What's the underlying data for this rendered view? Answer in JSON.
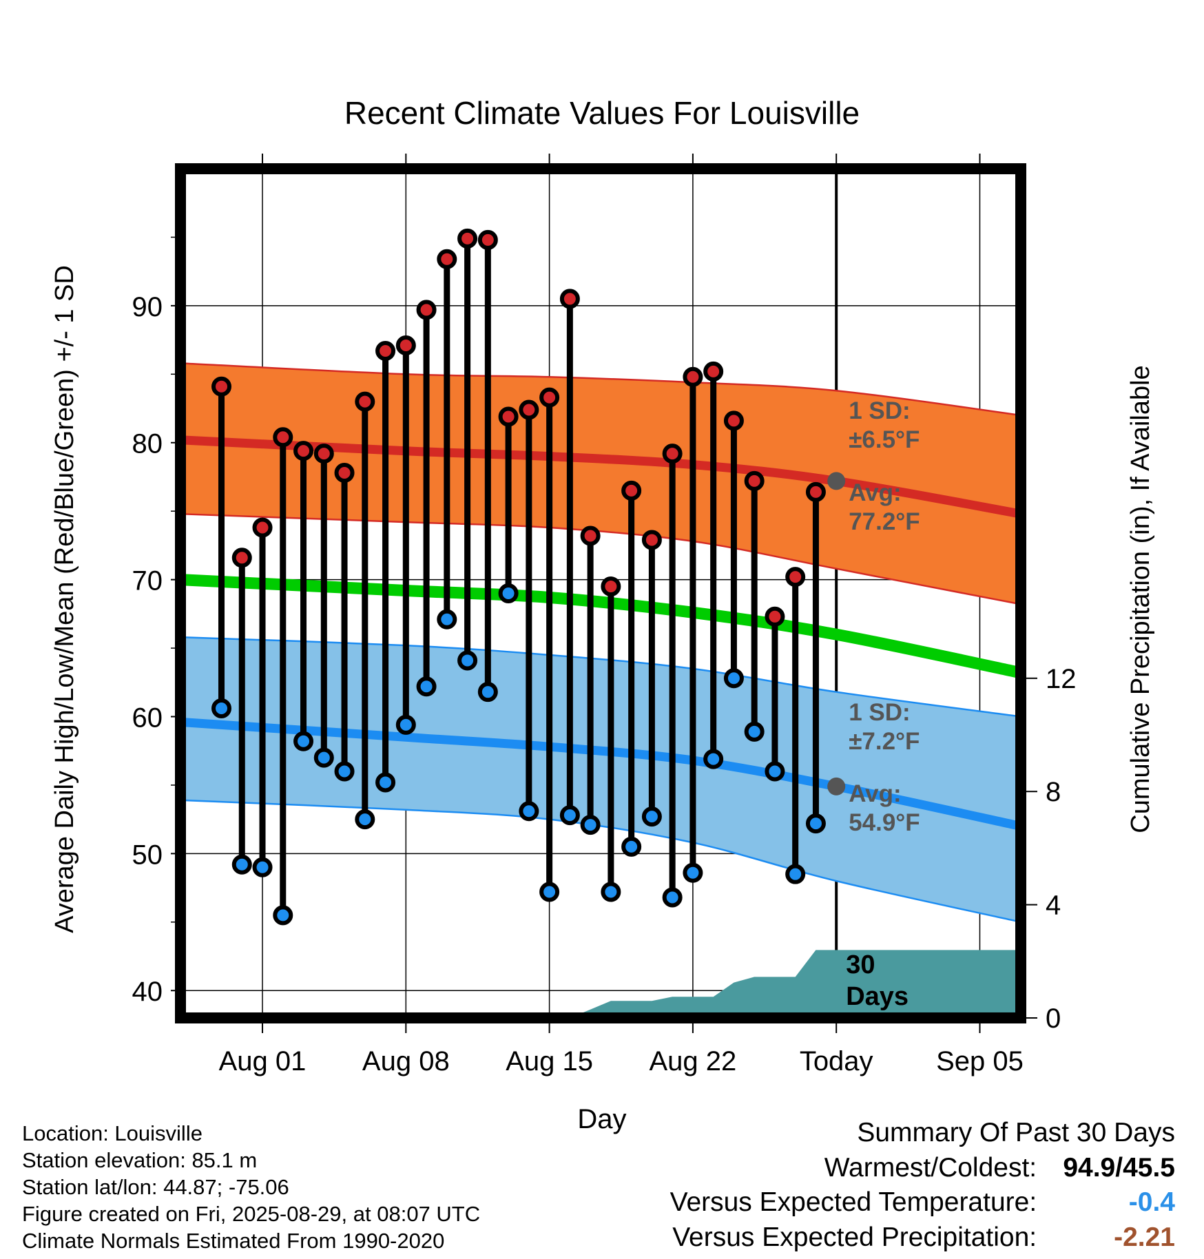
{
  "chart_data": {
    "type": "line",
    "title": "Recent Climate Values For Louisville",
    "xlabel": "Day",
    "ylabel": "Average Daily High/Low/Mean (Red/Blue/Green) +/- 1 SD",
    "y2label": "Cumulative Precipitation (in), If Available",
    "ylim": [
      38,
      100
    ],
    "y2lim": [
      0,
      30
    ],
    "xlim": [
      "Jul 28",
      "Sep 07"
    ],
    "today": "Aug 29",
    "yticks": [
      40,
      50,
      60,
      70,
      80,
      90
    ],
    "y2ticks": [
      0,
      4,
      8,
      12
    ],
    "xticks": [
      {
        "date": "Aug 01",
        "label": "Aug 01"
      },
      {
        "date": "Aug 08",
        "label": "Aug 08"
      },
      {
        "date": "Aug 15",
        "label": "Aug 15"
      },
      {
        "date": "Aug 22",
        "label": "Aug 22"
      },
      {
        "date": "Aug 29",
        "label": "Today"
      },
      {
        "date": "Sep 05",
        "label": "Sep 05"
      }
    ],
    "grid": true,
    "days": [
      "Jul 30",
      "Jul 31",
      "Aug 01",
      "Aug 02",
      "Aug 03",
      "Aug 04",
      "Aug 05",
      "Aug 06",
      "Aug 07",
      "Aug 08",
      "Aug 09",
      "Aug 10",
      "Aug 11",
      "Aug 12",
      "Aug 13",
      "Aug 14",
      "Aug 15",
      "Aug 16",
      "Aug 17",
      "Aug 18",
      "Aug 19",
      "Aug 20",
      "Aug 21",
      "Aug 22",
      "Aug 23",
      "Aug 24",
      "Aug 25",
      "Aug 26",
      "Aug 27",
      "Aug 28"
    ],
    "highs": [
      84.1,
      71.6,
      73.8,
      80.4,
      79.4,
      79.2,
      77.8,
      83.0,
      86.7,
      87.1,
      89.7,
      93.4,
      94.9,
      94.8,
      81.9,
      82.4,
      83.3,
      90.5,
      73.2,
      69.5,
      76.5,
      72.9,
      79.2,
      84.8,
      85.2,
      81.6,
      77.2,
      67.3,
      70.2,
      76.4
    ],
    "lows": [
      60.6,
      49.2,
      49.0,
      45.5,
      58.2,
      57.0,
      56.0,
      52.5,
      55.2,
      59.4,
      62.2,
      67.1,
      64.1,
      61.8,
      69.0,
      53.1,
      47.2,
      52.8,
      52.1,
      47.2,
      50.5,
      52.7,
      46.8,
      48.6,
      56.9,
      62.8,
      58.9,
      56.0,
      48.5,
      52.2
    ],
    "normals": {
      "dates": [
        "Jul 28",
        "Aug 08",
        "Aug 15",
        "Aug 22",
        "Aug 29",
        "Sep 07"
      ],
      "mean": [
        70.0,
        69.2,
        68.7,
        67.6,
        66.0,
        63.2
      ],
      "high_avg": [
        80.2,
        79.4,
        79.0,
        78.4,
        77.2,
        74.8
      ],
      "high_upper": [
        85.8,
        85.0,
        84.8,
        84.4,
        83.8,
        82.0
      ],
      "high_lower": [
        74.8,
        74.2,
        73.8,
        72.8,
        70.8,
        68.2
      ],
      "low_avg": [
        59.6,
        58.5,
        57.8,
        56.8,
        54.9,
        52.0
      ],
      "low_upper": [
        65.8,
        65.2,
        64.5,
        63.5,
        61.8,
        60.0
      ],
      "low_lower": [
        53.9,
        53.2,
        52.5,
        50.8,
        48.0,
        45.0
      ]
    },
    "precip": {
      "dates": [
        "Aug 16",
        "Aug 17",
        "Aug 18",
        "Aug 19",
        "Aug 20",
        "Aug 21",
        "Aug 22",
        "Aug 23",
        "Aug 24",
        "Aug 25",
        "Aug 26",
        "Aug 27",
        "Aug 28",
        "Sep 07"
      ],
      "values": [
        0.0,
        0.3,
        0.6,
        0.6,
        0.6,
        0.75,
        0.75,
        0.75,
        1.25,
        1.45,
        1.45,
        1.45,
        2.4,
        2.4
      ]
    },
    "annotations": {
      "high_sd_title": "1 SD:",
      "high_sd_value": "±6.5°F",
      "high_avg_title": "Avg:",
      "high_avg_value": "77.2°F",
      "low_sd_title": "1 SD:",
      "low_sd_value": "±7.2°F",
      "low_avg_title": "Avg:",
      "low_avg_value": "54.9°F",
      "days_line1": "30",
      "days_line2": "Days"
    },
    "colors": {
      "high_band": "#f47a2e",
      "high_line": "#d42a24",
      "low_band": "#85c1e8",
      "low_line": "#1c8cf2",
      "mean_line": "#00cc00",
      "precip_fill": "#4a9a9e",
      "high_dot": "#d3262a",
      "low_dot": "#1e8ff0",
      "annotation_text": "#555555",
      "today_marker": "#555555"
    }
  },
  "footer": {
    "location": "Location: Louisville",
    "elevation": "Station elevation: 85.1 m",
    "latlon": "Station lat/lon: 44.87; -75.06",
    "created": "Figure created on Fri, 2025-08-29, at 08:07 UTC",
    "normals": "Climate Normals Estimated From 1990-2020"
  },
  "summary": {
    "title": "Summary Of Past 30 Days",
    "warm_cold_label": "Warmest/Coldest:",
    "warm_cold_value": "94.9/45.5",
    "temp_label": "Versus Expected Temperature:",
    "temp_value": "-0.4",
    "temp_color": "#2a90e8",
    "precip_label": "Versus Expected Precipitation:",
    "precip_value": "-2.21",
    "precip_color": "#a0522d"
  }
}
